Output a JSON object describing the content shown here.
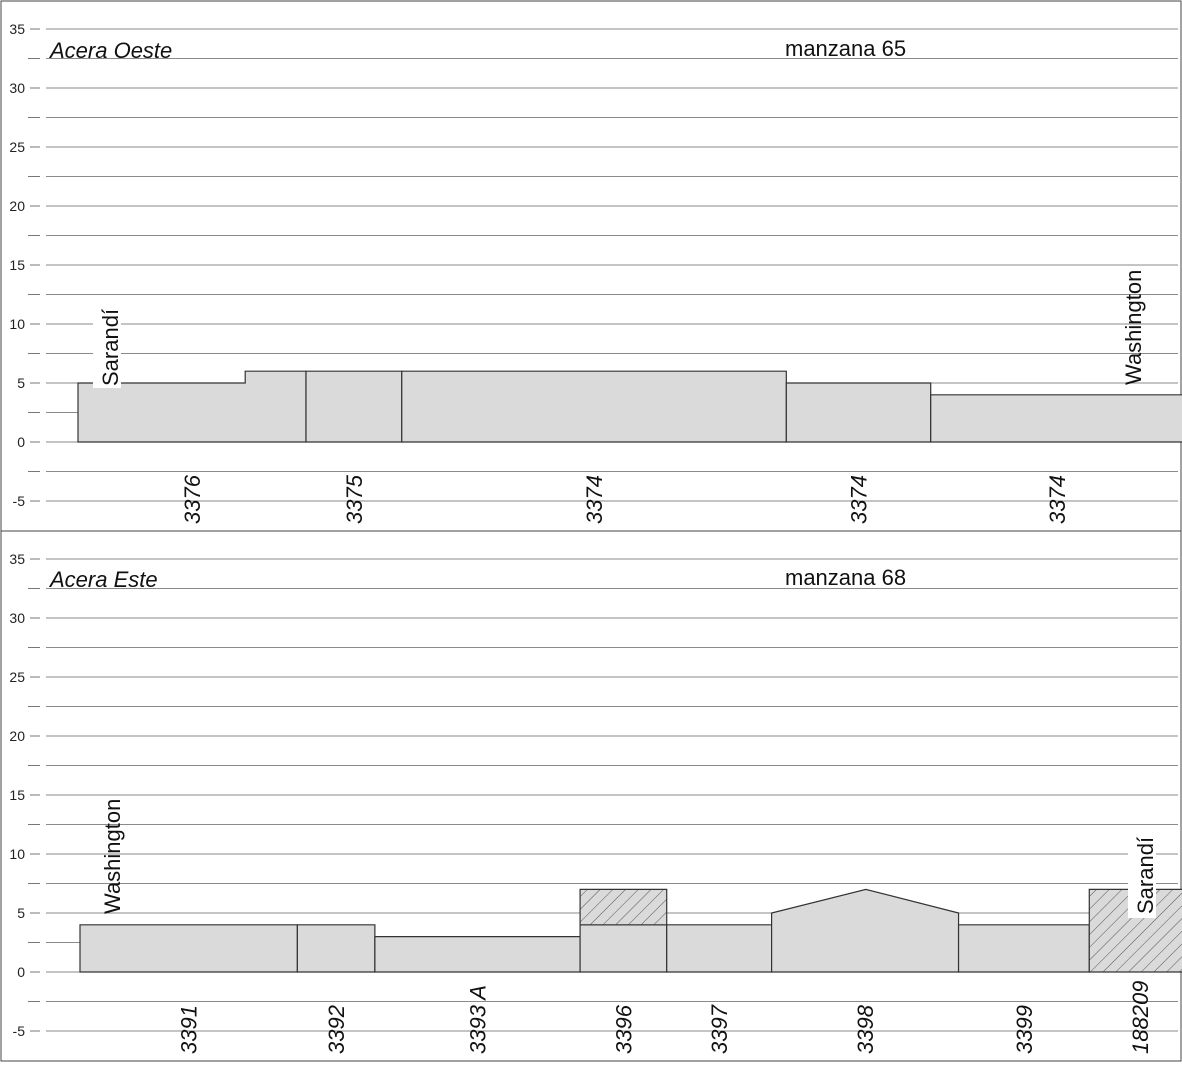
{
  "panels": [
    {
      "side_label": "Acera Oeste",
      "block_label": "manzana 65",
      "y_ticks": [
        "35",
        "30",
        "25",
        "20",
        "15",
        "10",
        "5",
        "0",
        "-5"
      ],
      "street_start": "Sarandí",
      "street_end": "Washington",
      "buildings": [
        {
          "id": "3376",
          "outline": [
            [
              0,
              5
            ],
            [
              11.0,
              5
            ],
            [
              11.0,
              6
            ],
            [
              15.0,
              6
            ],
            [
              15.0,
              0
            ],
            [
              0,
              0
            ]
          ]
        },
        {
          "id": "3375",
          "outline": [
            [
              15.0,
              0
            ],
            [
              15.0,
              6
            ],
            [
              21.3,
              6
            ],
            [
              21.3,
              0
            ]
          ]
        },
        {
          "id": "3374",
          "outline": [
            [
              21.3,
              0
            ],
            [
              21.3,
              6
            ],
            [
              46.6,
              6
            ],
            [
              46.6,
              0
            ]
          ]
        },
        {
          "id": "3374",
          "outline": [
            [
              46.6,
              0
            ],
            [
              46.6,
              5
            ],
            [
              56.1,
              5
            ],
            [
              56.1,
              0
            ]
          ]
        },
        {
          "id": "3374",
          "outline": [
            [
              56.1,
              0
            ],
            [
              56.1,
              4
            ],
            [
              72.7,
              4
            ],
            [
              72.7,
              0
            ]
          ]
        }
      ]
    },
    {
      "side_label": "Acera Este",
      "block_label": "manzana 68",
      "y_ticks": [
        "35",
        "30",
        "25",
        "20",
        "15",
        "10",
        "5",
        "0",
        "-5"
      ],
      "street_start": "Washington",
      "street_end": "Sarandí",
      "buildings": [
        {
          "id": "3391",
          "outline": [
            [
              0,
              0
            ],
            [
              0,
              4
            ],
            [
              14.3,
              4
            ],
            [
              14.3,
              0
            ]
          ]
        },
        {
          "id": "3392",
          "outline": [
            [
              14.3,
              0
            ],
            [
              14.3,
              4
            ],
            [
              19.4,
              4
            ],
            [
              19.4,
              0
            ]
          ]
        },
        {
          "id": "3393 A",
          "outline": [
            [
              19.4,
              0
            ],
            [
              19.4,
              3
            ],
            [
              32.9,
              3
            ],
            [
              32.9,
              0
            ]
          ]
        },
        {
          "id": "3396",
          "outline": [
            [
              32.9,
              0
            ],
            [
              32.9,
              4
            ],
            [
              38.6,
              4
            ],
            [
              38.6,
              0
            ]
          ],
          "upper": [
            [
              32.9,
              4
            ],
            [
              32.9,
              7
            ],
            [
              38.6,
              7
            ],
            [
              38.6,
              4
            ]
          ]
        },
        {
          "id": "3397",
          "outline": [
            [
              38.6,
              0
            ],
            [
              38.6,
              4
            ],
            [
              45.5,
              4
            ],
            [
              45.5,
              0
            ]
          ]
        },
        {
          "id": "3398",
          "outline": [
            [
              45.5,
              0
            ],
            [
              45.5,
              5
            ],
            [
              51.7,
              7
            ],
            [
              57.8,
              5
            ],
            [
              57.8,
              0
            ]
          ]
        },
        {
          "id": "3399",
          "outline": [
            [
              57.8,
              0
            ],
            [
              57.8,
              4
            ],
            [
              66.4,
              4
            ],
            [
              66.4,
              0
            ]
          ]
        },
        {
          "id": "188209",
          "outline": [
            [
              66.4,
              0
            ],
            [
              66.4,
              7
            ],
            [
              73.1,
              7
            ],
            [
              73.1,
              0
            ]
          ],
          "hatched": true
        }
      ]
    }
  ],
  "colors": {
    "building_fill": "#dadada",
    "outline": "#333333",
    "grid": "#8a8a8a",
    "frame": "#444444"
  }
}
